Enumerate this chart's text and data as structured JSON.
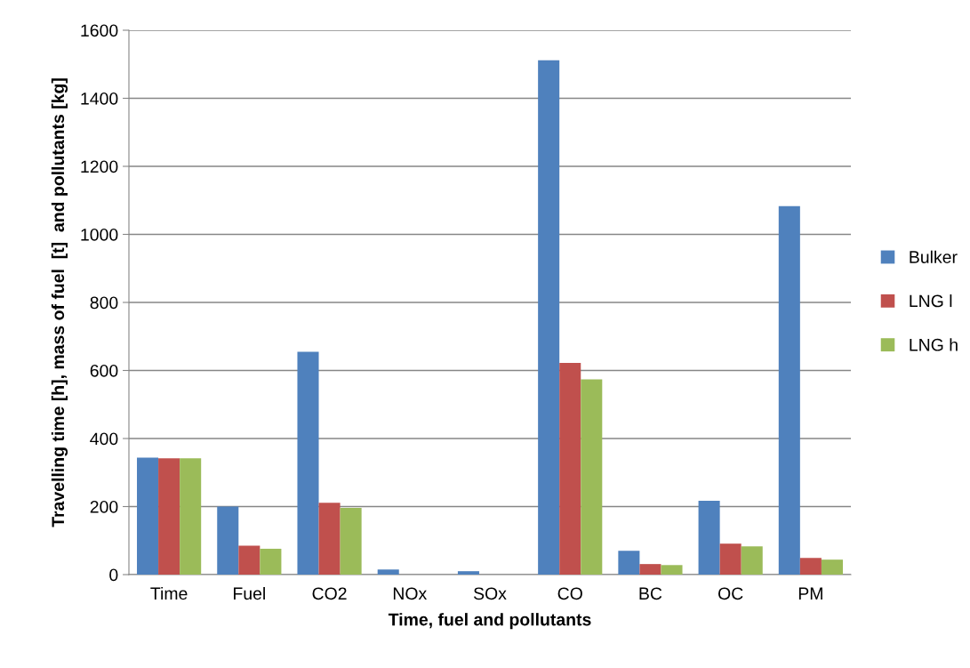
{
  "chart_data": {
    "type": "bar",
    "xlabel": "Time, fuel and pollutants",
    "ylabel": "Travelling time [h], mass of fuel  [t]  and pollutants [kg]",
    "categories": [
      "Time",
      "Fuel",
      "CO2",
      "NOx",
      "SOx",
      "CO",
      "BC",
      "OC",
      "PM"
    ],
    "series": [
      {
        "name": "Bulker",
        "color": "#4f81bd",
        "values": [
          344,
          200,
          655,
          15,
          10,
          1512,
          70,
          217,
          1083
        ]
      },
      {
        "name": "LNG l",
        "color": "#c0504d",
        "values": [
          342,
          85,
          211,
          null,
          null,
          622,
          31,
          91,
          49
        ]
      },
      {
        "name": "LNG h",
        "color": "#9bbb59",
        "values": [
          342,
          76,
          196,
          null,
          null,
          574,
          28,
          83,
          44
        ]
      }
    ],
    "ylim": [
      0,
      1600
    ],
    "yticks": [
      0,
      200,
      400,
      600,
      800,
      1000,
      1200,
      1400,
      1600
    ],
    "grid": "y",
    "legend": "right"
  }
}
